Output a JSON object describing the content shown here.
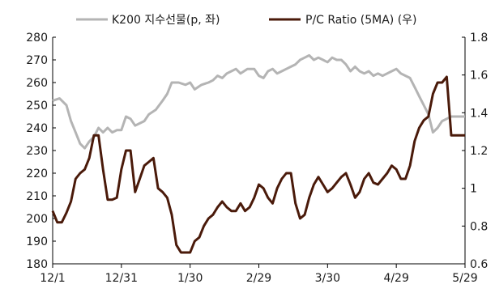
{
  "chart_data": {
    "type": "line",
    "legend_position": "top",
    "grid": false,
    "x": {
      "tick_labels": [
        "12/1",
        "12/31",
        "1/30",
        "2/29",
        "3/30",
        "4/29",
        "5/29"
      ],
      "tick_index": [
        0,
        30,
        60,
        90,
        120,
        150,
        180
      ]
    },
    "y_left": {
      "lim": [
        180,
        280
      ],
      "ticks": [
        180,
        190,
        200,
        210,
        220,
        230,
        240,
        250,
        260,
        270,
        280
      ],
      "labels": [
        "180",
        "190",
        "200",
        "210",
        "220",
        "230",
        "240",
        "250",
        "260",
        "270",
        "280"
      ]
    },
    "y_right": {
      "lim": [
        0.6,
        1.8
      ],
      "ticks": [
        0.6,
        0.8,
        1.0,
        1.2,
        1.4,
        1.6,
        1.8
      ],
      "labels": [
        "0.6",
        "0.8",
        "1",
        "1.2",
        "1.4",
        "1.6",
        "1.8"
      ]
    },
    "series": [
      {
        "name": "K200 지수선물(p, 좌)",
        "axis": "left",
        "color": "#b4b4b4",
        "points": [
          [
            0,
            252
          ],
          [
            3,
            253
          ],
          [
            6,
            250
          ],
          [
            8,
            243
          ],
          [
            10,
            238
          ],
          [
            12,
            233
          ],
          [
            14,
            231
          ],
          [
            16,
            234
          ],
          [
            18,
            236
          ],
          [
            20,
            240
          ],
          [
            22,
            238
          ],
          [
            24,
            240
          ],
          [
            26,
            238
          ],
          [
            28,
            239
          ],
          [
            30,
            239
          ],
          [
            32,
            245
          ],
          [
            34,
            244
          ],
          [
            36,
            241
          ],
          [
            38,
            242
          ],
          [
            40,
            243
          ],
          [
            42,
            246
          ],
          [
            45,
            248
          ],
          [
            48,
            252
          ],
          [
            50,
            255
          ],
          [
            52,
            260
          ],
          [
            55,
            260
          ],
          [
            58,
            259
          ],
          [
            60,
            260
          ],
          [
            62,
            257
          ],
          [
            65,
            259
          ],
          [
            68,
            260
          ],
          [
            70,
            261
          ],
          [
            72,
            263
          ],
          [
            74,
            262
          ],
          [
            76,
            264
          ],
          [
            78,
            265
          ],
          [
            80,
            266
          ],
          [
            82,
            264
          ],
          [
            85,
            266
          ],
          [
            88,
            266
          ],
          [
            90,
            263
          ],
          [
            92,
            262
          ],
          [
            94,
            265
          ],
          [
            96,
            266
          ],
          [
            98,
            264
          ],
          [
            100,
            265
          ],
          [
            102,
            266
          ],
          [
            104,
            267
          ],
          [
            106,
            268
          ],
          [
            108,
            270
          ],
          [
            110,
            271
          ],
          [
            112,
            272
          ],
          [
            114,
            270
          ],
          [
            116,
            271
          ],
          [
            118,
            270
          ],
          [
            120,
            269
          ],
          [
            122,
            271
          ],
          [
            124,
            270
          ],
          [
            126,
            270
          ],
          [
            128,
            268
          ],
          [
            130,
            265
          ],
          [
            132,
            267
          ],
          [
            134,
            265
          ],
          [
            136,
            264
          ],
          [
            138,
            265
          ],
          [
            140,
            263
          ],
          [
            142,
            264
          ],
          [
            144,
            263
          ],
          [
            146,
            264
          ],
          [
            148,
            265
          ],
          [
            150,
            266
          ],
          [
            152,
            264
          ],
          [
            154,
            263
          ],
          [
            156,
            262
          ],
          [
            158,
            258
          ],
          [
            160,
            254
          ],
          [
            162,
            250
          ],
          [
            164,
            246
          ],
          [
            166,
            238
          ],
          [
            168,
            240
          ],
          [
            170,
            243
          ],
          [
            172,
            244
          ],
          [
            174,
            245
          ],
          [
            176,
            245
          ],
          [
            178,
            245
          ],
          [
            180,
            245
          ]
        ]
      },
      {
        "name": "P/C Ratio (5MA) (우)",
        "axis": "right",
        "color": "#4a1a0a",
        "points": [
          [
            0,
            0.88
          ],
          [
            2,
            0.82
          ],
          [
            4,
            0.82
          ],
          [
            6,
            0.87
          ],
          [
            8,
            0.93
          ],
          [
            10,
            1.05
          ],
          [
            12,
            1.08
          ],
          [
            14,
            1.1
          ],
          [
            16,
            1.16
          ],
          [
            18,
            1.28
          ],
          [
            20,
            1.28
          ],
          [
            22,
            1.1
          ],
          [
            24,
            0.94
          ],
          [
            26,
            0.94
          ],
          [
            28,
            0.95
          ],
          [
            30,
            1.1
          ],
          [
            32,
            1.2
          ],
          [
            34,
            1.2
          ],
          [
            36,
            0.98
          ],
          [
            38,
            1.05
          ],
          [
            40,
            1.12
          ],
          [
            42,
            1.14
          ],
          [
            44,
            1.16
          ],
          [
            46,
            1.0
          ],
          [
            48,
            0.98
          ],
          [
            50,
            0.95
          ],
          [
            52,
            0.86
          ],
          [
            54,
            0.7
          ],
          [
            56,
            0.66
          ],
          [
            58,
            0.66
          ],
          [
            60,
            0.66
          ],
          [
            62,
            0.72
          ],
          [
            64,
            0.74
          ],
          [
            66,
            0.8
          ],
          [
            68,
            0.84
          ],
          [
            70,
            0.86
          ],
          [
            72,
            0.9
          ],
          [
            74,
            0.93
          ],
          [
            76,
            0.9
          ],
          [
            78,
            0.88
          ],
          [
            80,
            0.88
          ],
          [
            82,
            0.92
          ],
          [
            84,
            0.88
          ],
          [
            86,
            0.9
          ],
          [
            88,
            0.95
          ],
          [
            90,
            1.02
          ],
          [
            92,
            1.0
          ],
          [
            94,
            0.95
          ],
          [
            96,
            0.92
          ],
          [
            98,
            1.0
          ],
          [
            100,
            1.05
          ],
          [
            102,
            1.08
          ],
          [
            104,
            1.08
          ],
          [
            106,
            0.92
          ],
          [
            108,
            0.84
          ],
          [
            110,
            0.86
          ],
          [
            112,
            0.95
          ],
          [
            114,
            1.02
          ],
          [
            116,
            1.06
          ],
          [
            118,
            1.02
          ],
          [
            120,
            0.98
          ],
          [
            122,
            1.0
          ],
          [
            124,
            1.03
          ],
          [
            126,
            1.06
          ],
          [
            128,
            1.08
          ],
          [
            130,
            1.02
          ],
          [
            132,
            0.95
          ],
          [
            134,
            0.98
          ],
          [
            136,
            1.05
          ],
          [
            138,
            1.08
          ],
          [
            140,
            1.03
          ],
          [
            142,
            1.02
          ],
          [
            144,
            1.05
          ],
          [
            146,
            1.08
          ],
          [
            148,
            1.12
          ],
          [
            150,
            1.1
          ],
          [
            152,
            1.05
          ],
          [
            154,
            1.05
          ],
          [
            156,
            1.12
          ],
          [
            158,
            1.25
          ],
          [
            160,
            1.32
          ],
          [
            162,
            1.36
          ],
          [
            164,
            1.38
          ],
          [
            166,
            1.5
          ],
          [
            168,
            1.56
          ],
          [
            170,
            1.56
          ],
          [
            172,
            1.59
          ],
          [
            174,
            1.28
          ],
          [
            176,
            1.28
          ],
          [
            178,
            1.28
          ],
          [
            180,
            1.28
          ]
        ]
      }
    ]
  }
}
